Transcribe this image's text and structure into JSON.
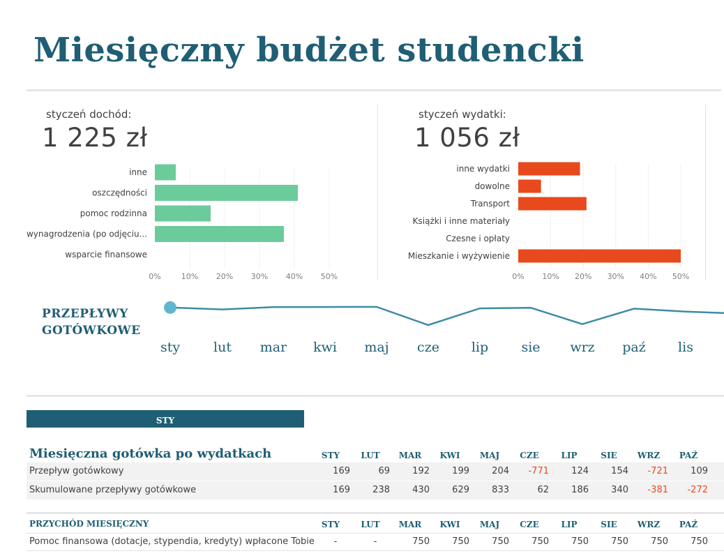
{
  "title": "Miesięczny budżet studencki",
  "income": {
    "label": "styczeń dochód:",
    "value": "1 225 zł"
  },
  "expenses": {
    "label": "styczeń wydatki:",
    "value": "1 056 zł"
  },
  "cashflow_title_line1": "PRZEPŁYWY",
  "cashflow_title_line2": "GOTÓWKOWE",
  "active_tab": "STY",
  "monthly_title": "Miesięczna gotówka po wydatkach",
  "income_section_title": "PRZYCHÓD MIESIĘCZNY",
  "table_headers": [
    "STY",
    "LUT",
    "MAR",
    "KWI",
    "MAJ",
    "CZE",
    "LIP",
    "SIE",
    "WRZ",
    "PAŹ"
  ],
  "rows": [
    {
      "label": "Przepływ gotówkowy",
      "values": [
        "169",
        "69",
        "192",
        "199",
        "204",
        "-771",
        "124",
        "154",
        "-721",
        "109"
      ]
    },
    {
      "label": "Skumulowane przepływy gotówkowe",
      "values": [
        "169",
        "238",
        "430",
        "629",
        "833",
        "62",
        "186",
        "340",
        "-381",
        "-272"
      ]
    }
  ],
  "income_rows": [
    {
      "label": "Pomoc finansowa (dotacje, stypendia, kredyty) wpłacone Tobie",
      "values": [
        "-",
        "-",
        "750",
        "750",
        "750",
        "750",
        "750",
        "750",
        "750",
        "750"
      ]
    }
  ],
  "chart_data": [
    {
      "type": "bar",
      "orientation": "horizontal",
      "categories": [
        "inne",
        "oszczędności",
        "pomoc rodzinna",
        "wynagrodzenia (po odjęciu...",
        "wsparcie finansowe"
      ],
      "values": [
        6,
        41,
        16,
        37,
        0
      ],
      "xlim": [
        0,
        50
      ],
      "ticks": [
        "0%",
        "10%",
        "20%",
        "30%",
        "40%",
        "50%"
      ],
      "color": "#6ccb9b"
    },
    {
      "type": "bar",
      "orientation": "horizontal",
      "categories": [
        "inne wydatki",
        "dowolne",
        "Transport",
        "Książki i inne materiały",
        "Czesne i opłaty",
        "Mieszkanie i wyżywienie"
      ],
      "values": [
        19,
        7,
        21,
        0,
        0,
        50
      ],
      "xlim": [
        0,
        50
      ],
      "ticks": [
        "0%",
        "10%",
        "20%",
        "30%",
        "40%",
        "50%"
      ],
      "color": "#e8491d"
    },
    {
      "type": "line",
      "x": [
        "sty",
        "lut",
        "mar",
        "kwi",
        "maj",
        "cze",
        "lip",
        "sie",
        "wrz",
        "paź",
        "lis"
      ],
      "values": [
        169,
        69,
        192,
        199,
        204,
        -771,
        124,
        154,
        -721,
        109,
        -50
      ],
      "color": "#3d8ca3"
    }
  ]
}
